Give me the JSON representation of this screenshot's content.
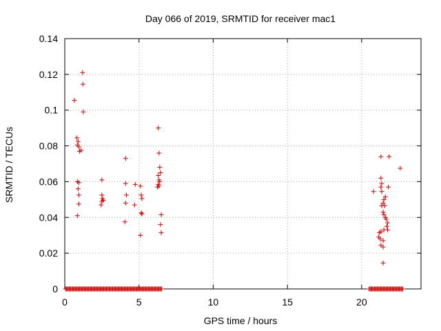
{
  "chart_data": {
    "type": "scatter",
    "title": "Day 066 of 2019, SRMTID for receiver mac1",
    "xlabel": "GPS time / hours",
    "ylabel": "SRMTID / TECUs",
    "xlim": [
      0,
      24
    ],
    "ylim": [
      0,
      0.14
    ],
    "xticks": [
      0,
      5,
      10,
      15,
      20
    ],
    "yticks": [
      0,
      0.02,
      0.04,
      0.06,
      0.08,
      0.1,
      0.12,
      0.14
    ],
    "xtick_labels": [
      "0",
      "5",
      "10",
      "15",
      "20"
    ],
    "ytick_labels": [
      "0",
      "0.02",
      "0.04",
      "0.06",
      "0.08",
      "0.1",
      "0.12",
      "0.14"
    ],
    "grid": true,
    "marker": "+",
    "series": [
      {
        "name": "SRMTID",
        "color": "#cc0000",
        "points": [
          [
            0.65,
            0.1055
          ],
          [
            0.82,
            0.0845
          ],
          [
            0.85,
            0.0805
          ],
          [
            0.9,
            0.0825
          ],
          [
            0.95,
            0.0795
          ],
          [
            1.0,
            0.077
          ],
          [
            1.1,
            0.0775
          ],
          [
            1.2,
            0.121
          ],
          [
            1.22,
            0.1145
          ],
          [
            1.25,
            0.099
          ],
          [
            0.85,
            0.06
          ],
          [
            0.95,
            0.0595
          ],
          [
            0.9,
            0.056
          ],
          [
            0.95,
            0.0525
          ],
          [
            0.95,
            0.0475
          ],
          [
            0.85,
            0.041
          ],
          [
            2.5,
            0.061
          ],
          [
            2.5,
            0.0525
          ],
          [
            2.55,
            0.0505
          ],
          [
            2.6,
            0.0495
          ],
          [
            2.5,
            0.049
          ],
          [
            2.45,
            0.047
          ],
          [
            4.1,
            0.073
          ],
          [
            4.1,
            0.059
          ],
          [
            4.15,
            0.0525
          ],
          [
            4.1,
            0.048
          ],
          [
            4.05,
            0.0375
          ],
          [
            4.75,
            0.0585
          ],
          [
            4.7,
            0.047
          ],
          [
            5.1,
            0.0575
          ],
          [
            5.15,
            0.0525
          ],
          [
            5.2,
            0.0505
          ],
          [
            5.15,
            0.0425
          ],
          [
            5.2,
            0.042
          ],
          [
            5.1,
            0.03
          ],
          [
            6.3,
            0.09
          ],
          [
            6.35,
            0.076
          ],
          [
            6.4,
            0.068
          ],
          [
            6.45,
            0.065
          ],
          [
            6.3,
            0.0635
          ],
          [
            6.35,
            0.061
          ],
          [
            6.4,
            0.06
          ],
          [
            6.3,
            0.0585
          ],
          [
            6.25,
            0.057
          ],
          [
            6.35,
            0.0575
          ],
          [
            6.5,
            0.0415
          ],
          [
            6.45,
            0.036
          ],
          [
            6.5,
            0.0315
          ],
          [
            20.8,
            0.0545
          ],
          [
            21.3,
            0.074
          ],
          [
            21.85,
            0.074
          ],
          [
            22.6,
            0.0675
          ],
          [
            21.3,
            0.062
          ],
          [
            21.35,
            0.059
          ],
          [
            21.3,
            0.057
          ],
          [
            21.35,
            0.0545
          ],
          [
            21.6,
            0.0515
          ],
          [
            21.5,
            0.05
          ],
          [
            21.45,
            0.048
          ],
          [
            21.55,
            0.0465
          ],
          [
            21.35,
            0.0465
          ],
          [
            21.45,
            0.043
          ],
          [
            21.5,
            0.0415
          ],
          [
            21.6,
            0.04
          ],
          [
            21.65,
            0.039
          ],
          [
            21.8,
            0.057
          ],
          [
            21.75,
            0.037
          ],
          [
            21.7,
            0.035
          ],
          [
            21.75,
            0.033
          ],
          [
            21.5,
            0.033
          ],
          [
            21.3,
            0.032
          ],
          [
            21.2,
            0.0315
          ],
          [
            21.15,
            0.029
          ],
          [
            21.25,
            0.028
          ],
          [
            21.45,
            0.027
          ],
          [
            21.3,
            0.0245
          ],
          [
            21.45,
            0.0235
          ],
          [
            21.45,
            0.0145
          ]
        ],
        "zero_ranges": [
          [
            0.05,
            6.55
          ],
          [
            20.5,
            22.8
          ]
        ],
        "zero_step": 0.06
      }
    ]
  }
}
